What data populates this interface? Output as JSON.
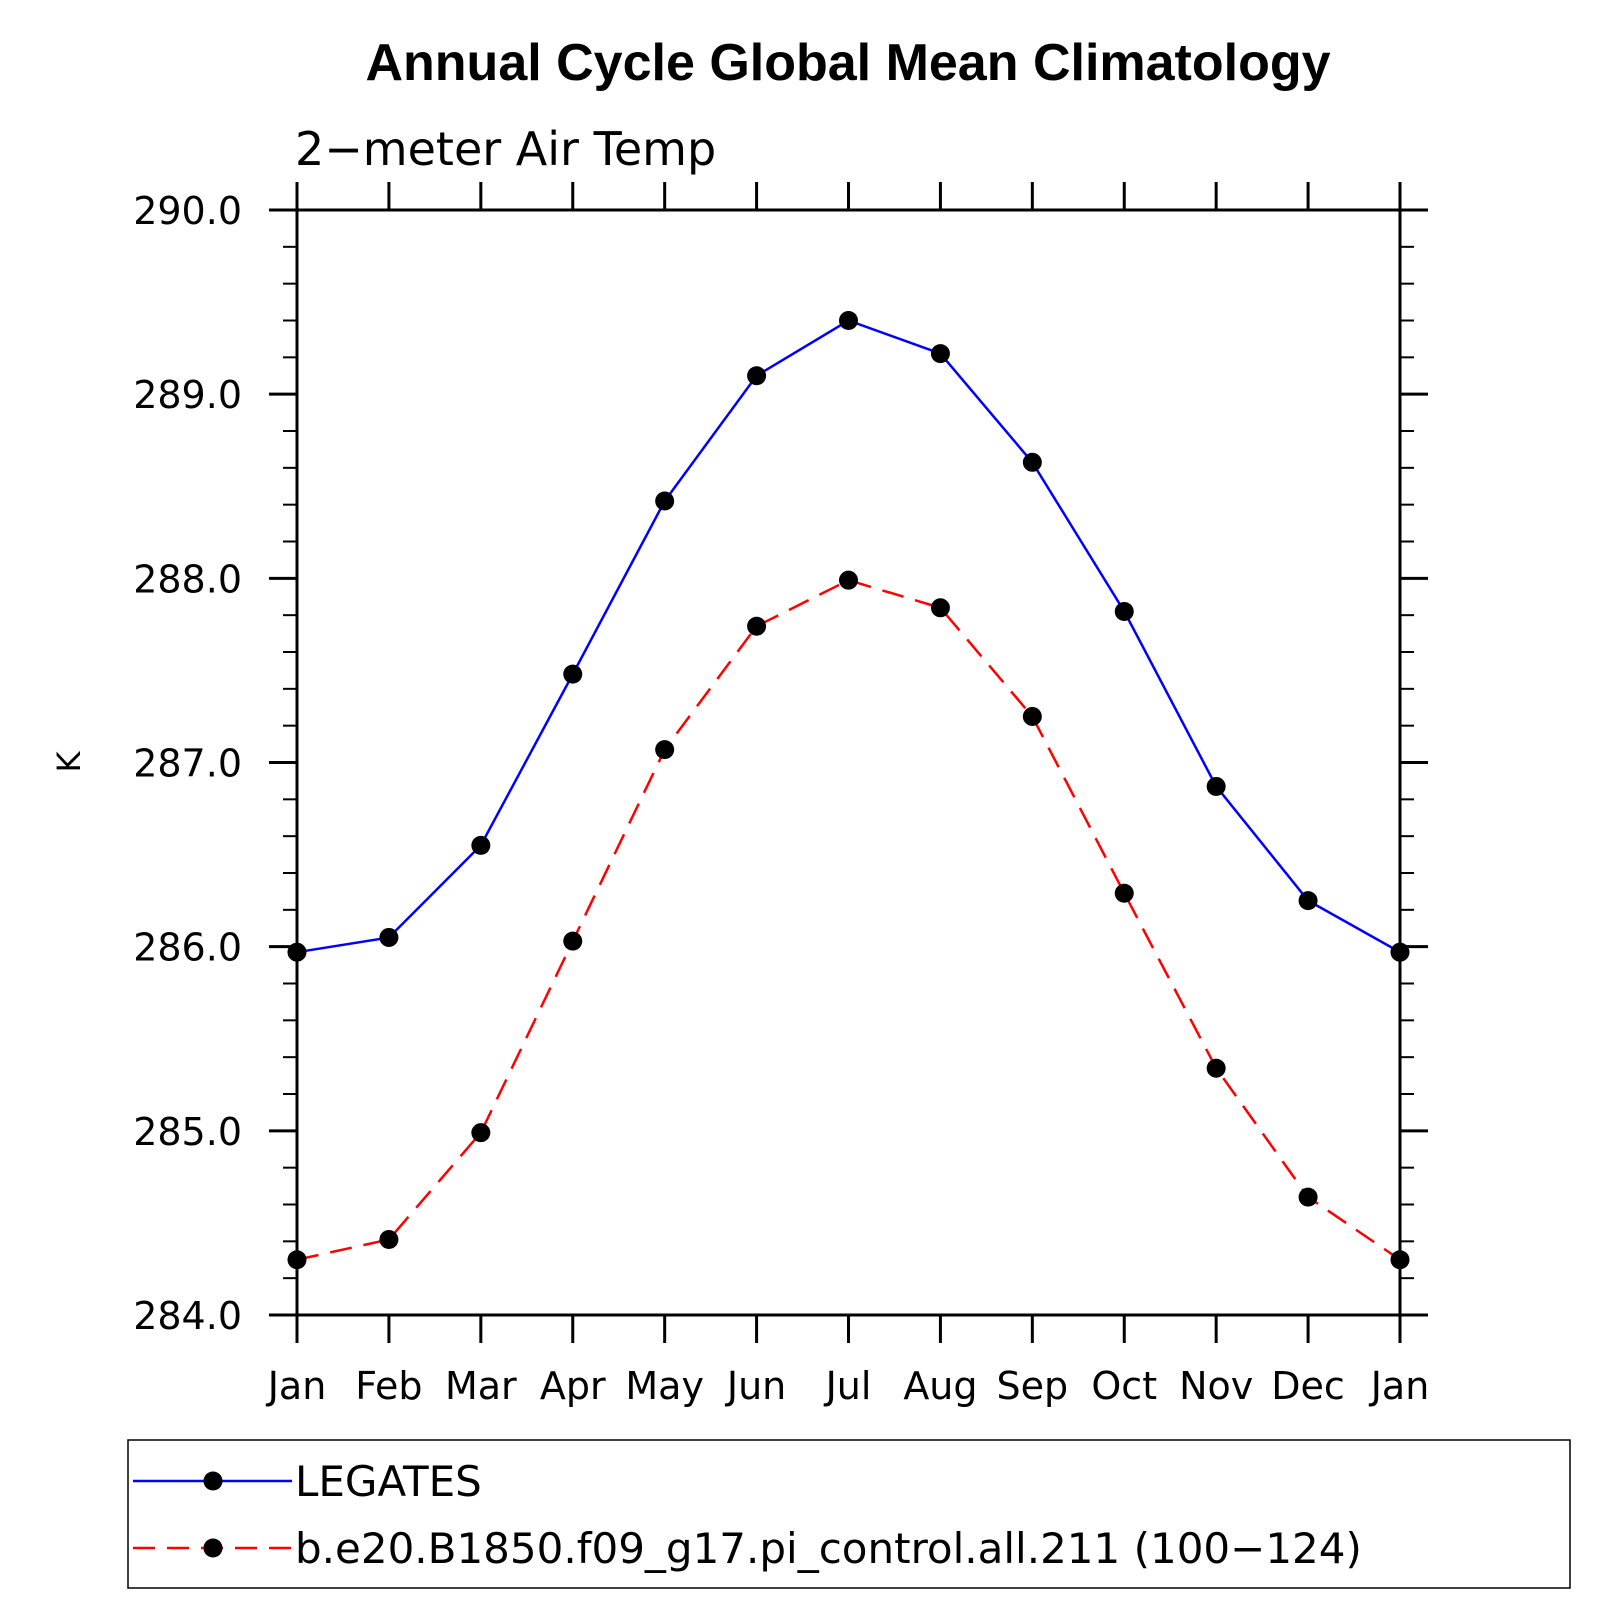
{
  "chart_data": {
    "type": "line",
    "title": "Annual Cycle Global Mean Climatology",
    "subtitle": "2−meter Air Temp",
    "xlabel": "",
    "ylabel": "K",
    "categories": [
      "Jan",
      "Feb",
      "Mar",
      "Apr",
      "May",
      "Jun",
      "Jul",
      "Aug",
      "Sep",
      "Oct",
      "Nov",
      "Dec",
      "Jan"
    ],
    "ylim": [
      284.0,
      290.0
    ],
    "yticks": [
      "284.0",
      "285.0",
      "286.0",
      "287.0",
      "288.0",
      "289.0",
      "290.0"
    ],
    "grid": false,
    "legend_position": "bottom",
    "series": [
      {
        "name": "LEGATES",
        "color": "#0000ff",
        "dash": "solid",
        "marker": "filled-circle",
        "values": [
          285.97,
          286.05,
          286.55,
          287.48,
          288.42,
          289.1,
          289.4,
          289.22,
          288.63,
          287.82,
          286.87,
          286.25,
          285.97
        ]
      },
      {
        "name": "b.e20.B1850.f09_g17.pi_control.all.211 (100−124)",
        "color": "#ff0000",
        "dash": "dashed",
        "marker": "filled-circle",
        "values": [
          284.3,
          284.41,
          284.99,
          286.03,
          287.07,
          287.74,
          287.99,
          287.84,
          287.25,
          286.29,
          285.34,
          284.64,
          284.3
        ]
      }
    ]
  }
}
